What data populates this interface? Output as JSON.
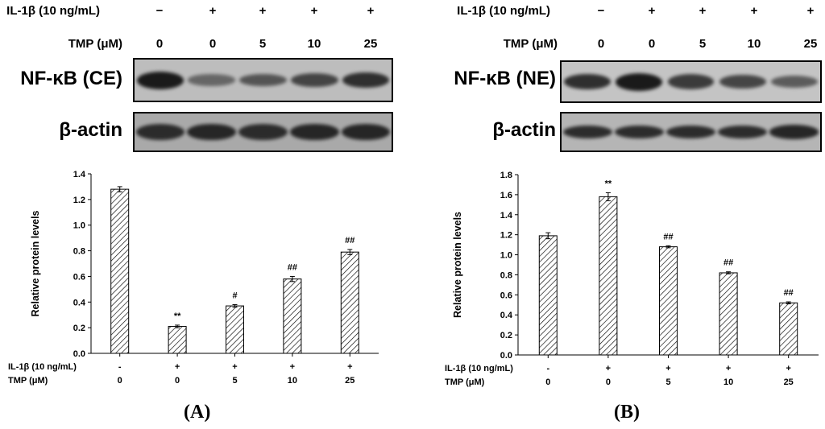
{
  "panels": [
    {
      "letter": "(A)",
      "protein": "NF-κB (CE)",
      "control": "β-actin",
      "il_label": "IL-1β (10 ng/mL)",
      "tmp_label": "TMP (μM)",
      "il_signs": [
        "−",
        "+",
        "+",
        "+",
        "+"
      ],
      "tmp_values": [
        "0",
        "0",
        "5",
        "10",
        "25"
      ],
      "blot_bands": [
        1.0,
        0.28,
        0.45,
        0.6,
        0.8
      ],
      "actin_bands": [
        0.85,
        0.9,
        0.85,
        0.9,
        0.9
      ]
    },
    {
      "letter": "(B)",
      "protein": "NF-κB (NE)",
      "control": "β-actin",
      "il_label": "IL-1β (10 ng/mL)",
      "tmp_label": "TMP (μM)",
      "il_signs": [
        "−",
        "+",
        "+",
        "+",
        "+"
      ],
      "tmp_values": [
        "0",
        "0",
        "5",
        "10",
        "25"
      ],
      "blot_bands": [
        0.8,
        1.0,
        0.7,
        0.6,
        0.4
      ],
      "actin_bands": [
        0.85,
        0.85,
        0.85,
        0.85,
        0.9
      ]
    }
  ],
  "chart_data": [
    {
      "type": "bar",
      "title": "",
      "xlabel": "",
      "ylabel": "Relative protein levels",
      "ylim": [
        0,
        1.4
      ],
      "yticks": [
        "0.0",
        "0.2",
        "0.4",
        "0.6",
        "0.8",
        "1.0",
        "1.2",
        "1.4"
      ],
      "grid": false,
      "bar_pattern": "diagonal-hatch",
      "row_labels": [
        "IL-1β (10 ng/mL)",
        "TMP (μM)"
      ],
      "categories_il": [
        "-",
        "+",
        "+",
        "+",
        "+"
      ],
      "categories_tmp": [
        "0",
        "0",
        "5",
        "10",
        "25"
      ],
      "values": [
        1.28,
        0.21,
        0.37,
        0.58,
        0.79
      ],
      "errors": [
        0.02,
        0.01,
        0.01,
        0.02,
        0.02
      ],
      "annotations": [
        "",
        "**",
        "#",
        "##",
        "##"
      ]
    },
    {
      "type": "bar",
      "title": "",
      "xlabel": "",
      "ylabel": "Relative protein levels",
      "ylim": [
        0,
        1.8
      ],
      "yticks": [
        "0.0",
        "0.2",
        "0.4",
        "0.6",
        "0.8",
        "1.0",
        "1.2",
        "1.4",
        "1.6",
        "1.8"
      ],
      "grid": false,
      "bar_pattern": "diagonal-hatch",
      "row_labels": [
        "IL-1β (10 ng/mL)",
        "TMP (μM)"
      ],
      "categories_il": [
        "-",
        "+",
        "+",
        "+",
        "+"
      ],
      "categories_tmp": [
        "0",
        "0",
        "5",
        "10",
        "25"
      ],
      "values": [
        1.19,
        1.58,
        1.08,
        0.82,
        0.52
      ],
      "errors": [
        0.03,
        0.04,
        0.01,
        0.01,
        0.01
      ],
      "annotations": [
        "",
        "**",
        "##",
        "##",
        "##"
      ]
    }
  ]
}
